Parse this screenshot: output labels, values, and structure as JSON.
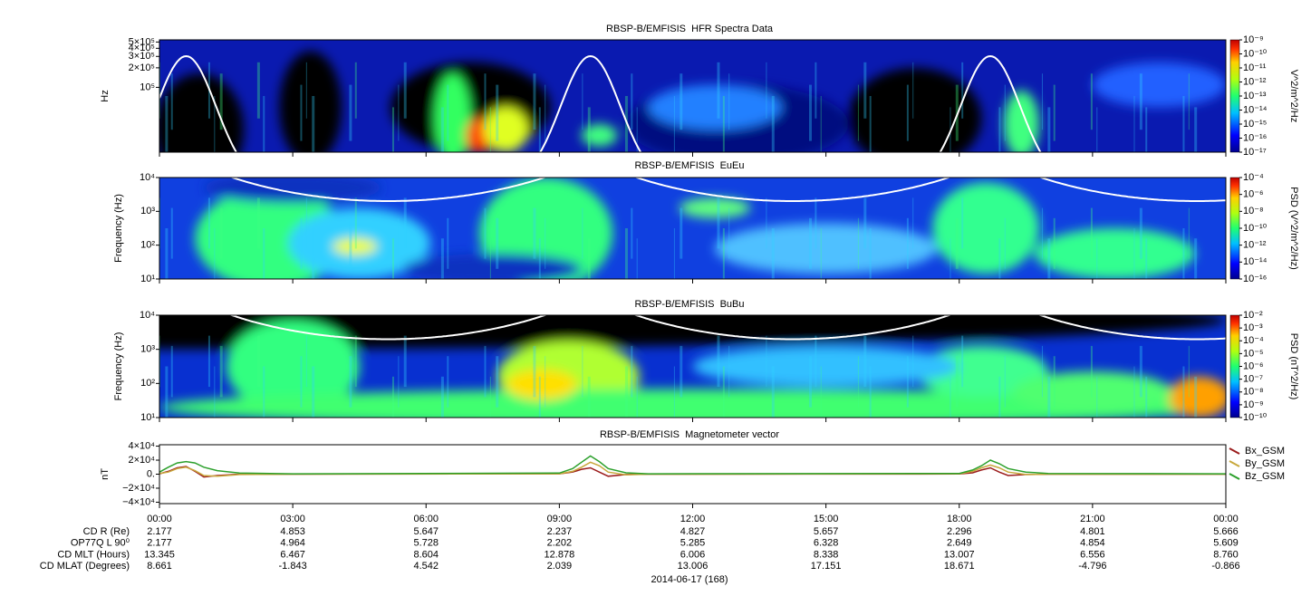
{
  "chart_data": [
    {
      "type": "spectrogram",
      "title": "RBSP-B/EMFISIS  HFR Spectra Data",
      "ylabel": "Hz",
      "log_y": true,
      "ylim": [
        10000,
        540000
      ],
      "yticks": [
        {
          "value": 500000,
          "label": "5×10⁵"
        },
        {
          "value": 400000,
          "label": "4×10⁵"
        },
        {
          "value": 300000,
          "label": "3×10⁵"
        },
        {
          "value": 200000,
          "label": "2×10⁵"
        },
        {
          "value": 100000,
          "label": "10⁵"
        }
      ],
      "colorbar_label": "V^2/m^2/Hz",
      "clim": [
        1e-17,
        1e-09
      ],
      "colorbar_ticks": [
        {
          "value": 1e-09,
          "label": "10⁻⁹"
        },
        {
          "value": 1e-10,
          "label": "10⁻¹⁰"
        },
        {
          "value": 1e-11,
          "label": "10⁻¹¹"
        },
        {
          "value": 1e-12,
          "label": "10⁻¹²"
        },
        {
          "value": 1e-13,
          "label": "10⁻¹³"
        },
        {
          "value": 1e-14,
          "label": "10⁻¹⁴"
        },
        {
          "value": 1e-15,
          "label": "10⁻¹⁵"
        },
        {
          "value": 1e-16,
          "label": "10⁻¹⁶"
        },
        {
          "value": 1e-17,
          "label": "10⁻¹⁷"
        }
      ]
    },
    {
      "type": "spectrogram",
      "title": "RBSP-B/EMFISIS  EuEu",
      "ylabel": "Frequency (Hz)",
      "log_y": true,
      "ylim": [
        10,
        10000
      ],
      "yticks": [
        {
          "value": 10000,
          "label": "10⁴"
        },
        {
          "value": 1000,
          "label": "10³"
        },
        {
          "value": 100,
          "label": "10²"
        },
        {
          "value": 10,
          "label": "10¹"
        }
      ],
      "colorbar_label": "PSD (V^2/m^2/Hz)",
      "clim": [
        1e-16,
        0.0001
      ],
      "colorbar_ticks": [
        {
          "value": 0.0001,
          "label": "10⁻⁴"
        },
        {
          "value": 1e-06,
          "label": "10⁻⁶"
        },
        {
          "value": 1e-08,
          "label": "10⁻⁸"
        },
        {
          "value": 1e-10,
          "label": "10⁻¹⁰"
        },
        {
          "value": 1e-12,
          "label": "10⁻¹²"
        },
        {
          "value": 1e-14,
          "label": "10⁻¹⁴"
        },
        {
          "value": 1e-16,
          "label": "10⁻¹⁶"
        }
      ]
    },
    {
      "type": "spectrogram",
      "title": "RBSP-B/EMFISIS  BuBu",
      "ylabel": "Frequency (Hz)",
      "log_y": true,
      "ylim": [
        10,
        10000
      ],
      "yticks": [
        {
          "value": 10000,
          "label": "10⁴"
        },
        {
          "value": 1000,
          "label": "10³"
        },
        {
          "value": 100,
          "label": "10²"
        },
        {
          "value": 10,
          "label": "10¹"
        }
      ],
      "colorbar_label": "PSD (nT^2/Hz)",
      "clim": [
        1e-10,
        0.01
      ],
      "colorbar_ticks": [
        {
          "value": 0.01,
          "label": "10⁻²"
        },
        {
          "value": 0.001,
          "label": "10⁻³"
        },
        {
          "value": 0.0001,
          "label": "10⁻⁴"
        },
        {
          "value": 1e-05,
          "label": "10⁻⁵"
        },
        {
          "value": 1e-06,
          "label": "10⁻⁶"
        },
        {
          "value": 1e-07,
          "label": "10⁻⁷"
        },
        {
          "value": 1e-08,
          "label": "10⁻⁸"
        },
        {
          "value": 1e-09,
          "label": "10⁻⁹"
        },
        {
          "value": 1e-10,
          "label": "10⁻¹⁰"
        }
      ]
    },
    {
      "type": "line",
      "title": "RBSP-B/EMFISIS  Magnetometer vector",
      "ylabel": "nT",
      "ylim": [
        -42000,
        42000
      ],
      "yticks": [
        {
          "value": 40000,
          "label": "4×10⁴"
        },
        {
          "value": 20000,
          "label": "2×10⁴"
        },
        {
          "value": 0,
          "label": "0."
        },
        {
          "value": -20000,
          "label": "−2×10⁴"
        },
        {
          "value": -40000,
          "label": "−4×10⁴"
        }
      ],
      "xlim": [
        0,
        24
      ],
      "xticks": [
        {
          "value": 0,
          "label": "00:00"
        },
        {
          "value": 3,
          "label": "03:00"
        },
        {
          "value": 6,
          "label": "06:00"
        },
        {
          "value": 9,
          "label": "09:00"
        },
        {
          "value": 12,
          "label": "12:00"
        },
        {
          "value": 15,
          "label": "15:00"
        },
        {
          "value": 18,
          "label": "18:00"
        },
        {
          "value": 21,
          "label": "21:00"
        },
        {
          "value": 24,
          "label": "00:00"
        }
      ],
      "x": [
        0,
        0.2,
        0.4,
        0.6,
        0.8,
        1.0,
        1.3,
        1.8,
        3,
        9,
        9.3,
        9.5,
        9.7,
        9.9,
        10.1,
        10.5,
        11,
        18,
        18.3,
        18.5,
        18.7,
        18.9,
        19.1,
        19.5,
        20,
        24
      ],
      "series": [
        {
          "name": "Bx_GSM",
          "color": "#9b1c1c",
          "values": [
            500,
            4000,
            9000,
            11000,
            4000,
            -4000,
            -2000,
            0,
            0,
            500,
            3000,
            7000,
            9000,
            3000,
            -3000,
            -500,
            0,
            300,
            2000,
            6000,
            9000,
            3000,
            -2000,
            -500,
            0,
            0
          ]
        },
        {
          "name": "By_GSM",
          "color": "#c8a83c",
          "values": [
            1000,
            3000,
            8000,
            10000,
            5000,
            -2000,
            -3000,
            -500,
            0,
            500,
            4000,
            10000,
            17000,
            12000,
            3000,
            -1000,
            0,
            500,
            4000,
            9000,
            13000,
            9000,
            3000,
            -500,
            0,
            0
          ]
        },
        {
          "name": "Bz_GSM",
          "color": "#2ca02c",
          "values": [
            3000,
            10000,
            16000,
            18000,
            16000,
            10000,
            5000,
            1500,
            500,
            1500,
            8000,
            17000,
            26000,
            18000,
            8000,
            2000,
            500,
            1000,
            6000,
            12000,
            20000,
            15000,
            8000,
            3000,
            1000,
            500
          ]
        }
      ]
    }
  ],
  "ephemeris": {
    "rows": [
      {
        "label": "CD R (Re)",
        "values": [
          "2.177",
          "4.853",
          "5.647",
          "2.237",
          "4.827",
          "5.657",
          "2.296",
          "4.801",
          "5.666"
        ]
      },
      {
        "label": "OP77Q L 90⁰",
        "values": [
          "2.177",
          "4.964",
          "5.728",
          "2.202",
          "5.285",
          "6.328",
          "2.649",
          "4.854",
          "5.609"
        ]
      },
      {
        "label": "CD MLT (Hours)",
        "values": [
          "13.345",
          "6.467",
          "8.604",
          "12.878",
          "6.006",
          "8.338",
          "13.007",
          "6.556",
          "8.760"
        ]
      },
      {
        "label": "CD MLAT (Degrees)",
        "values": [
          "8.661",
          "-1.843",
          "4.542",
          "2.039",
          "13.006",
          "17.151",
          "18.671",
          "-4.796",
          "-0.866"
        ]
      }
    ],
    "date": "2014-06-17 (168)"
  }
}
